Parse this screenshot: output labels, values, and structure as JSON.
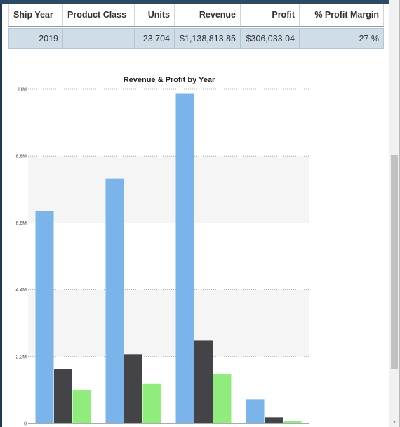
{
  "table": {
    "headers": [
      "Ship Year",
      "Product Class",
      "Units",
      "Revenue",
      "Profit",
      "% Profit Margin"
    ],
    "row": {
      "ship_year": "2019",
      "product_class": "",
      "units": "23,704",
      "revenue": "$1,138,813.85",
      "profit": "$306,033.04",
      "profit_margin": "27 %"
    }
  },
  "chart_data": {
    "type": "bar",
    "title": "Revenue & Profit by Year",
    "xlabel": "",
    "ylabel": "",
    "ylim": [
      0,
      11000000
    ],
    "yticks": [
      0,
      2200000,
      4400000,
      6600000,
      8800000,
      11000000
    ],
    "ytick_labels": [
      "0",
      "2.2M",
      "4.4M",
      "6.6M",
      "8.8M",
      "11M"
    ],
    "category_count": 4,
    "categories": [
      "",
      "",
      "",
      ""
    ],
    "series": [
      {
        "values": [
          7000000,
          8050000,
          10850000,
          800000
        ],
        "color": "#7ab4ea"
      },
      {
        "values": [
          1800000,
          2280000,
          2740000,
          200000
        ],
        "color": "#434348"
      },
      {
        "values": [
          1100000,
          1300000,
          1620000,
          90000
        ],
        "color": "#90ed7d"
      }
    ],
    "grid": true,
    "alternating_bands": true,
    "legend": "none"
  }
}
